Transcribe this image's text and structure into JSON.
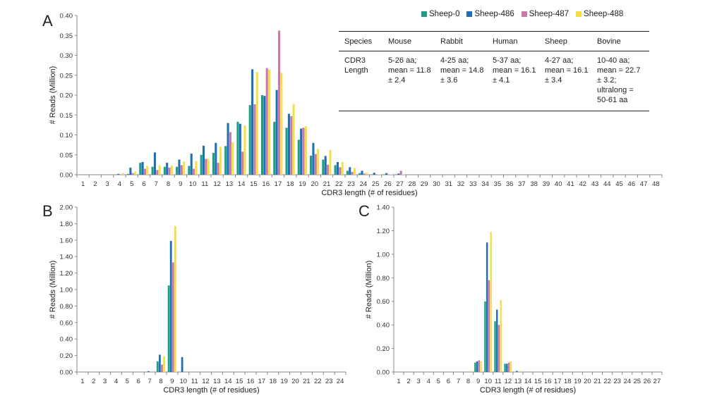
{
  "legend": {
    "items": [
      {
        "name": "Sheep-0",
        "color": "#1b9e83"
      },
      {
        "name": "Sheep-486",
        "color": "#1f6fb4"
      },
      {
        "name": "Sheep-487",
        "color": "#cc79a7"
      },
      {
        "name": "Sheep-488",
        "color": "#f2e046"
      }
    ]
  },
  "table": {
    "headers": [
      "Species",
      "Mouse",
      "Rabbit",
      "Human",
      "Sheep",
      "Bovine"
    ],
    "row": {
      "label": "CDR3 Length",
      "cells": [
        "5-26 aa; mean = 11.8 ± 2.4",
        "4-25 aa; mean = 14.8 ± 3.6",
        "5-37 aa; mean = 16.1 ± 4.1",
        "4-27 aa; mean = 16.1 ± 3.4",
        "10-40 aa; mean = 22.7 ± 3.2; ultralong = 50-61 aa"
      ]
    }
  },
  "chart_data": [
    {
      "panel": "A",
      "type": "bar",
      "xlabel": "CDR3 length (# of residues)",
      "ylabel": "# Reads (Million)",
      "ylim": [
        0,
        0.4
      ],
      "yticks": [
        "0.00",
        "0.05",
        "0.10",
        "0.15",
        "0.20",
        "0.25",
        "0.30",
        "0.35",
        "0.40"
      ],
      "categories": [
        "1",
        "2",
        "3",
        "4",
        "5",
        "6",
        "7",
        "8",
        "9",
        "10",
        "11",
        "12",
        "13",
        "14",
        "15",
        "16",
        "17",
        "18",
        "19",
        "20",
        "21",
        "22",
        "23",
        "24",
        "25",
        "26",
        "27",
        "28",
        "29",
        "30",
        "31",
        "32",
        "33",
        "34",
        "35",
        "36",
        "37",
        "38",
        "39",
        "40",
        "41",
        "42",
        "43",
        "44",
        "45",
        "46",
        "47",
        "48"
      ],
      "series": [
        {
          "name": "Sheep-0",
          "values": [
            0,
            0,
            0,
            0,
            0.002,
            0.03,
            0.02,
            0.02,
            0.02,
            0.022,
            0.05,
            0.055,
            0.072,
            0.133,
            0.175,
            0.2,
            0.133,
            0.118,
            0.088,
            0.048,
            0.038,
            0.024,
            0.01,
            0.004,
            0.001,
            0.001,
            0.001,
            0,
            0,
            0,
            0,
            0,
            0,
            0,
            0,
            0,
            0,
            0,
            0,
            0,
            0,
            0,
            0,
            0,
            0,
            0,
            0,
            0
          ]
        },
        {
          "name": "Sheep-486",
          "values": [
            0,
            0,
            0,
            0.002,
            0.018,
            0.032,
            0.056,
            0.03,
            0.038,
            0.053,
            0.073,
            0.08,
            0.13,
            0.128,
            0.265,
            0.198,
            0.213,
            0.153,
            0.116,
            0.08,
            0.047,
            0.032,
            0.019,
            0.01,
            0.005,
            0.004,
            0.003,
            0,
            0,
            0,
            0,
            0,
            0,
            0,
            0,
            0,
            0,
            0,
            0,
            0,
            0,
            0,
            0,
            0,
            0,
            0,
            0,
            0
          ]
        },
        {
          "name": "Sheep-487",
          "values": [
            0,
            0,
            0,
            0,
            0.004,
            0.015,
            0.012,
            0.018,
            0.024,
            0.015,
            0.04,
            0.03,
            0.107,
            0.058,
            0.177,
            0.268,
            0.362,
            0.147,
            0.118,
            0.052,
            0.025,
            0.019,
            0.007,
            0.003,
            0.001,
            0.001,
            0.01,
            0,
            0,
            0,
            0,
            0,
            0,
            0,
            0,
            0,
            0,
            0,
            0,
            0,
            0,
            0,
            0,
            0,
            0,
            0,
            0,
            0
          ]
        },
        {
          "name": "Sheep-488",
          "values": [
            0,
            0,
            0,
            0.004,
            0.008,
            0.022,
            0.024,
            0.023,
            0.033,
            0.034,
            0.04,
            0.07,
            0.082,
            0.124,
            0.258,
            0.264,
            0.256,
            0.178,
            0.122,
            0.065,
            0.062,
            0.032,
            0.017,
            0.005,
            0.001,
            0.001,
            0.001,
            0,
            0,
            0,
            0,
            0,
            0,
            0,
            0,
            0,
            0,
            0,
            0,
            0,
            0,
            0,
            0,
            0,
            0,
            0,
            0,
            0
          ]
        }
      ]
    },
    {
      "panel": "B",
      "type": "bar",
      "xlabel": "CDR3 length (# of residues)",
      "ylabel": "# Reads (Million)",
      "ylim": [
        0,
        2.0
      ],
      "yticks": [
        "0.00",
        "0.20",
        "0.40",
        "0.60",
        "0.80",
        "1.00",
        "1.20",
        "1.40",
        "1.60",
        "1.80",
        "2.00"
      ],
      "categories": [
        "1",
        "2",
        "3",
        "4",
        "5",
        "6",
        "7",
        "8",
        "9",
        "10",
        "11",
        "12",
        "13",
        "14",
        "15",
        "16",
        "17",
        "18",
        "19",
        "20",
        "21",
        "22",
        "23",
        "24"
      ],
      "series": [
        {
          "name": "Sheep-0",
          "values": [
            0,
            0,
            0,
            0,
            0,
            0,
            0,
            0.13,
            1.05,
            0,
            0,
            0,
            0,
            0,
            0,
            0,
            0,
            0,
            0,
            0,
            0,
            0,
            0,
            0
          ]
        },
        {
          "name": "Sheep-486",
          "values": [
            0,
            0,
            0,
            0,
            0,
            0,
            0.01,
            0.21,
            1.59,
            0.18,
            0,
            0,
            0,
            0,
            0,
            0,
            0,
            0,
            0,
            0,
            0,
            0,
            0,
            0
          ]
        },
        {
          "name": "Sheep-487",
          "values": [
            0,
            0,
            0,
            0,
            0,
            0,
            0,
            0.09,
            1.33,
            0,
            0,
            0,
            0,
            0,
            0,
            0,
            0,
            0,
            0,
            0,
            0,
            0,
            0,
            0
          ]
        },
        {
          "name": "Sheep-488",
          "values": [
            0,
            0,
            0,
            0,
            0,
            0,
            0,
            0.19,
            1.77,
            0,
            0,
            0,
            0,
            0,
            0,
            0,
            0,
            0,
            0,
            0,
            0,
            0,
            0,
            0
          ]
        }
      ]
    },
    {
      "panel": "C",
      "type": "bar",
      "xlabel": "CDR3 length (# of residues)",
      "ylabel": "# Reads (Million)",
      "ylim": [
        0,
        1.4
      ],
      "yticks": [
        "0.00",
        "0.20",
        "0.40",
        "0.60",
        "0.80",
        "1.00",
        "1.20",
        "1.40"
      ],
      "categories": [
        "1",
        "2",
        "3",
        "4",
        "5",
        "6",
        "7",
        "8",
        "9",
        "10",
        "11",
        "12",
        "13",
        "14",
        "15",
        "16",
        "17",
        "18",
        "19",
        "20",
        "21",
        "22",
        "23",
        "24",
        "25",
        "26",
        "27"
      ],
      "series": [
        {
          "name": "Sheep-0",
          "values": [
            0,
            0,
            0,
            0,
            0,
            0,
            0,
            0,
            0.08,
            0.6,
            0.43,
            0.07,
            0,
            0,
            0,
            0,
            0,
            0,
            0,
            0,
            0,
            0,
            0,
            0,
            0,
            0,
            0
          ]
        },
        {
          "name": "Sheep-486",
          "values": [
            0,
            0,
            0,
            0,
            0,
            0,
            0,
            0,
            0.09,
            1.1,
            0.53,
            0.07,
            0.01,
            0,
            0,
            0,
            0,
            0,
            0,
            0,
            0,
            0,
            0,
            0,
            0,
            0,
            0
          ]
        },
        {
          "name": "Sheep-487",
          "values": [
            0,
            0,
            0,
            0,
            0,
            0,
            0,
            0,
            0.1,
            0.78,
            0.4,
            0.08,
            0,
            0,
            0,
            0,
            0,
            0,
            0,
            0,
            0,
            0,
            0,
            0,
            0,
            0,
            0
          ]
        },
        {
          "name": "Sheep-488",
          "values": [
            0,
            0,
            0,
            0,
            0,
            0,
            0,
            0.01,
            0.09,
            1.19,
            0.61,
            0.09,
            0.01,
            0,
            0,
            0,
            0,
            0,
            0,
            0,
            0,
            0,
            0,
            0,
            0,
            0,
            0
          ]
        }
      ]
    }
  ],
  "panel_labels": {
    "a": "A",
    "b": "B",
    "c": "C"
  }
}
